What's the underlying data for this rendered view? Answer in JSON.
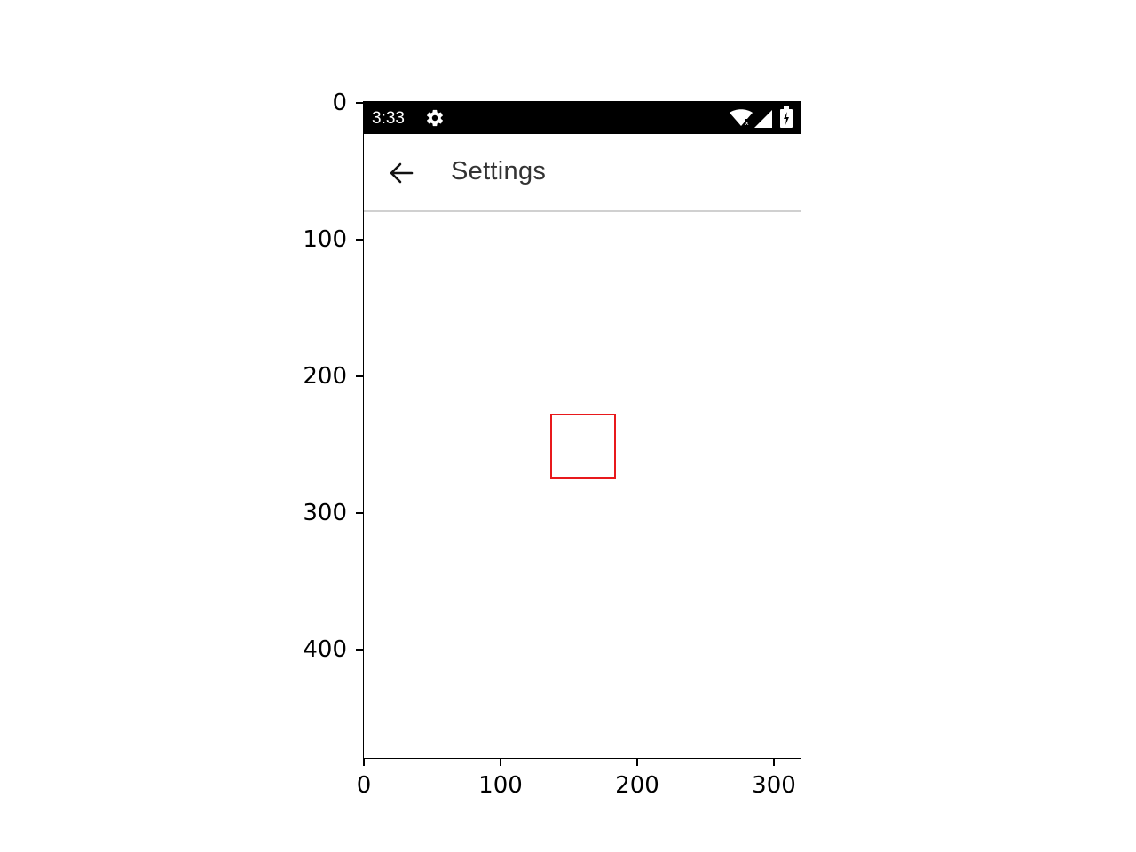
{
  "status_bar": {
    "time": "3:33",
    "icons": [
      "gear-icon",
      "wifi-icon",
      "cell-signal-icon",
      "battery-charging-icon"
    ]
  },
  "app_bar": {
    "back_icon": "arrow-left-icon",
    "title": "Settings"
  },
  "axes": {
    "x_ticks": [
      "0",
      "100",
      "200",
      "300"
    ],
    "y_ticks": [
      "0",
      "100",
      "200",
      "300",
      "400"
    ]
  },
  "colors": {
    "status_bar": "#000000",
    "highlight": "#e8191c",
    "title_text": "#333333"
  }
}
